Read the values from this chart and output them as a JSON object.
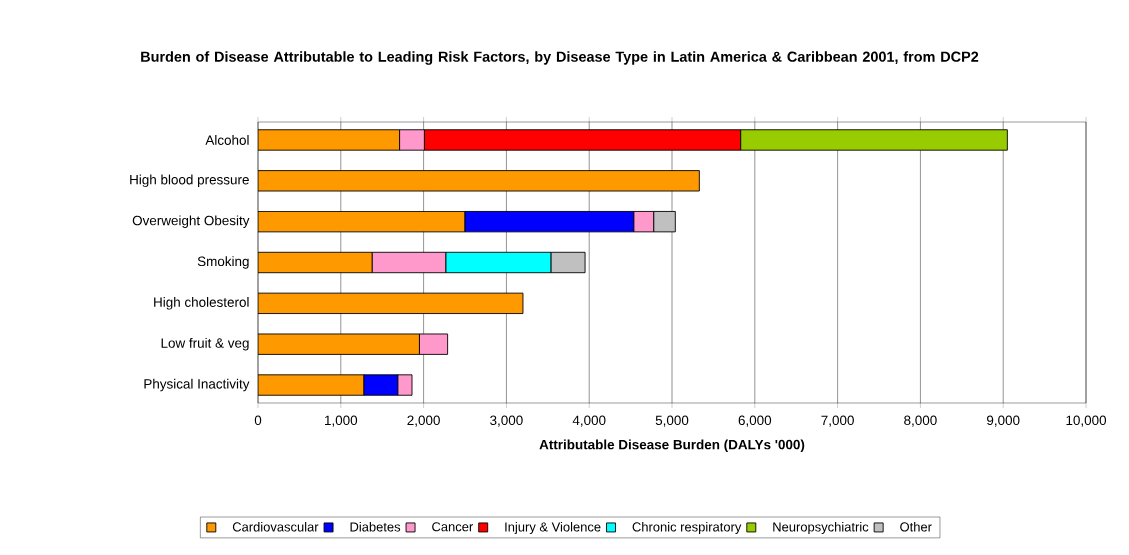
{
  "chart_data": {
    "type": "bar",
    "orientation": "horizontal",
    "stacked": true,
    "title": "Burden of Disease Attributable to Leading Risk Factors, by Disease Type in Latin America & Caribbean 2001, from DCP2",
    "xlabel": "Attributable Disease Burden (DALYs '000)",
    "categories": [
      "Alcohol",
      "High blood pressure",
      "Overweight Obesity",
      "Smoking",
      "High cholesterol",
      "Low fruit & veg",
      "Physical Inactivity"
    ],
    "series": [
      {
        "name": "Cardiovascular",
        "color": "#ff9900",
        "values": [
          1710,
          5330,
          2500,
          1380,
          3200,
          1950,
          1280
        ]
      },
      {
        "name": "Diabetes",
        "color": "#0000ff",
        "values": [
          null,
          null,
          2040,
          null,
          null,
          null,
          410
        ]
      },
      {
        "name": "Cancer",
        "color": "#ff99cc",
        "values": [
          300,
          null,
          240,
          890,
          null,
          340,
          170
        ]
      },
      {
        "name": "Injury & Violence",
        "color": "#ff0000",
        "values": [
          3820,
          null,
          null,
          null,
          null,
          null,
          null
        ]
      },
      {
        "name": "Chronic respiratory",
        "color": "#00ffff",
        "values": [
          null,
          null,
          null,
          1270,
          null,
          null,
          null
        ]
      },
      {
        "name": "Neuropsychiatric",
        "color": "#99cc00",
        "values": [
          3220,
          null,
          null,
          null,
          null,
          null,
          null
        ]
      },
      {
        "name": "Other",
        "color": "#c0c0c0",
        "values": [
          null,
          null,
          260,
          410,
          null,
          null,
          null
        ]
      }
    ],
    "xlim": [
      0,
      10000
    ],
    "xticks": [
      0,
      {
        "value": 1000,
        "label": "1,000"
      },
      {
        "value": 2000,
        "label": "2,000"
      },
      {
        "value": 3000,
        "label": "3,000"
      },
      {
        "value": 4000,
        "label": "4,000"
      },
      {
        "value": 5000,
        "label": "5,000"
      },
      {
        "value": 6000,
        "label": "6,000"
      },
      {
        "value": 7000,
        "label": "7,000"
      },
      {
        "value": 8000,
        "label": "8,000"
      },
      {
        "value": 9000,
        "label": "9,000"
      },
      {
        "value": 10000,
        "label": "10,000"
      }
    ],
    "grid": "x",
    "legend": "bottom"
  }
}
